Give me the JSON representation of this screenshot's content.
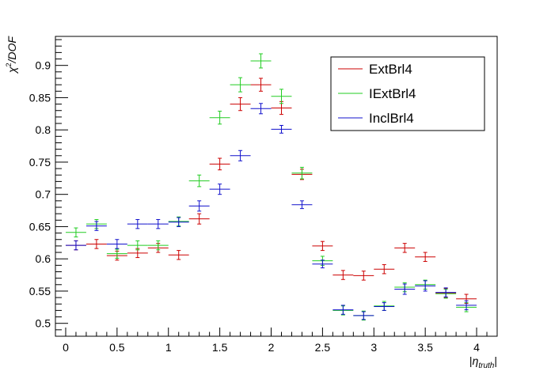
{
  "chart_data": {
    "type": "scatter",
    "xlabel": "|η_truth|",
    "ylabel": "χ²/DOF",
    "xlim": [
      -0.1,
      4.2
    ],
    "ylim": [
      0.48,
      0.945
    ],
    "x_ticks": [
      0,
      0.5,
      1,
      1.5,
      2,
      2.5,
      3,
      3.5,
      4
    ],
    "y_ticks": [
      0.5,
      0.55,
      0.6,
      0.65,
      0.7,
      0.75,
      0.8,
      0.85,
      0.9
    ],
    "x_tick_labels": [
      "0",
      "0.5",
      "1",
      "1.5",
      "2",
      "2.5",
      "3",
      "3.5",
      "4"
    ],
    "y_tick_labels": [
      "0.5",
      "0.55",
      "0.6",
      "0.65",
      "0.7",
      "0.75",
      "0.8",
      "0.85",
      "0.9"
    ],
    "bin_half_width": 0.1,
    "grid": false,
    "legend_position": "top-right",
    "series": [
      {
        "name": "ExtBrl4",
        "color": "#cc0000",
        "x": [
          0.1,
          0.3,
          0.5,
          0.7,
          0.9,
          1.1,
          1.3,
          1.5,
          1.7,
          1.9,
          2.1,
          2.3,
          2.5,
          2.7,
          2.9,
          3.1,
          3.3,
          3.5,
          3.7,
          3.9
        ],
        "y": [
          0.621,
          0.623,
          0.605,
          0.609,
          0.617,
          0.606,
          0.662,
          0.747,
          0.84,
          0.87,
          0.834,
          0.731,
          0.62,
          0.575,
          0.574,
          0.584,
          0.617,
          0.603,
          0.547,
          0.538
        ],
        "err": [
          0.007,
          0.007,
          0.007,
          0.007,
          0.007,
          0.007,
          0.008,
          0.009,
          0.01,
          0.01,
          0.01,
          0.008,
          0.007,
          0.007,
          0.007,
          0.007,
          0.007,
          0.007,
          0.007,
          0.007
        ]
      },
      {
        "name": "IExtBrl4",
        "color": "#22cc22",
        "x": [
          0.1,
          0.3,
          0.5,
          0.7,
          0.9,
          1.1,
          1.3,
          1.5,
          1.7,
          1.9,
          2.1,
          2.3,
          2.5,
          2.7,
          2.9,
          3.1,
          3.3,
          3.5,
          3.7,
          3.9
        ],
        "y": [
          0.641,
          0.654,
          0.608,
          0.621,
          0.621,
          0.658,
          0.721,
          0.819,
          0.87,
          0.907,
          0.852,
          0.733,
          0.597,
          0.52,
          0.512,
          0.527,
          0.556,
          0.56,
          0.546,
          0.525
        ],
        "err": [
          0.007,
          0.007,
          0.007,
          0.007,
          0.007,
          0.007,
          0.009,
          0.01,
          0.011,
          0.011,
          0.011,
          0.009,
          0.007,
          0.007,
          0.007,
          0.007,
          0.007,
          0.007,
          0.007,
          0.007
        ]
      },
      {
        "name": "InclBrl4",
        "color": "#1111cc",
        "x": [
          0.1,
          0.3,
          0.5,
          0.7,
          0.9,
          1.1,
          1.3,
          1.5,
          1.7,
          1.9,
          2.1,
          2.3,
          2.5,
          2.7,
          2.9,
          3.1,
          3.3,
          3.5,
          3.7,
          3.9
        ],
        "y": [
          0.621,
          0.651,
          0.623,
          0.654,
          0.654,
          0.657,
          0.682,
          0.708,
          0.76,
          0.833,
          0.801,
          0.684,
          0.592,
          0.521,
          0.512,
          0.526,
          0.553,
          0.558,
          0.548,
          0.528
        ],
        "err": [
          0.007,
          0.007,
          0.007,
          0.007,
          0.007,
          0.007,
          0.008,
          0.008,
          0.008,
          0.008,
          0.006,
          0.006,
          0.006,
          0.007,
          0.006,
          0.006,
          0.008,
          0.008,
          0.007,
          0.007
        ]
      }
    ]
  }
}
